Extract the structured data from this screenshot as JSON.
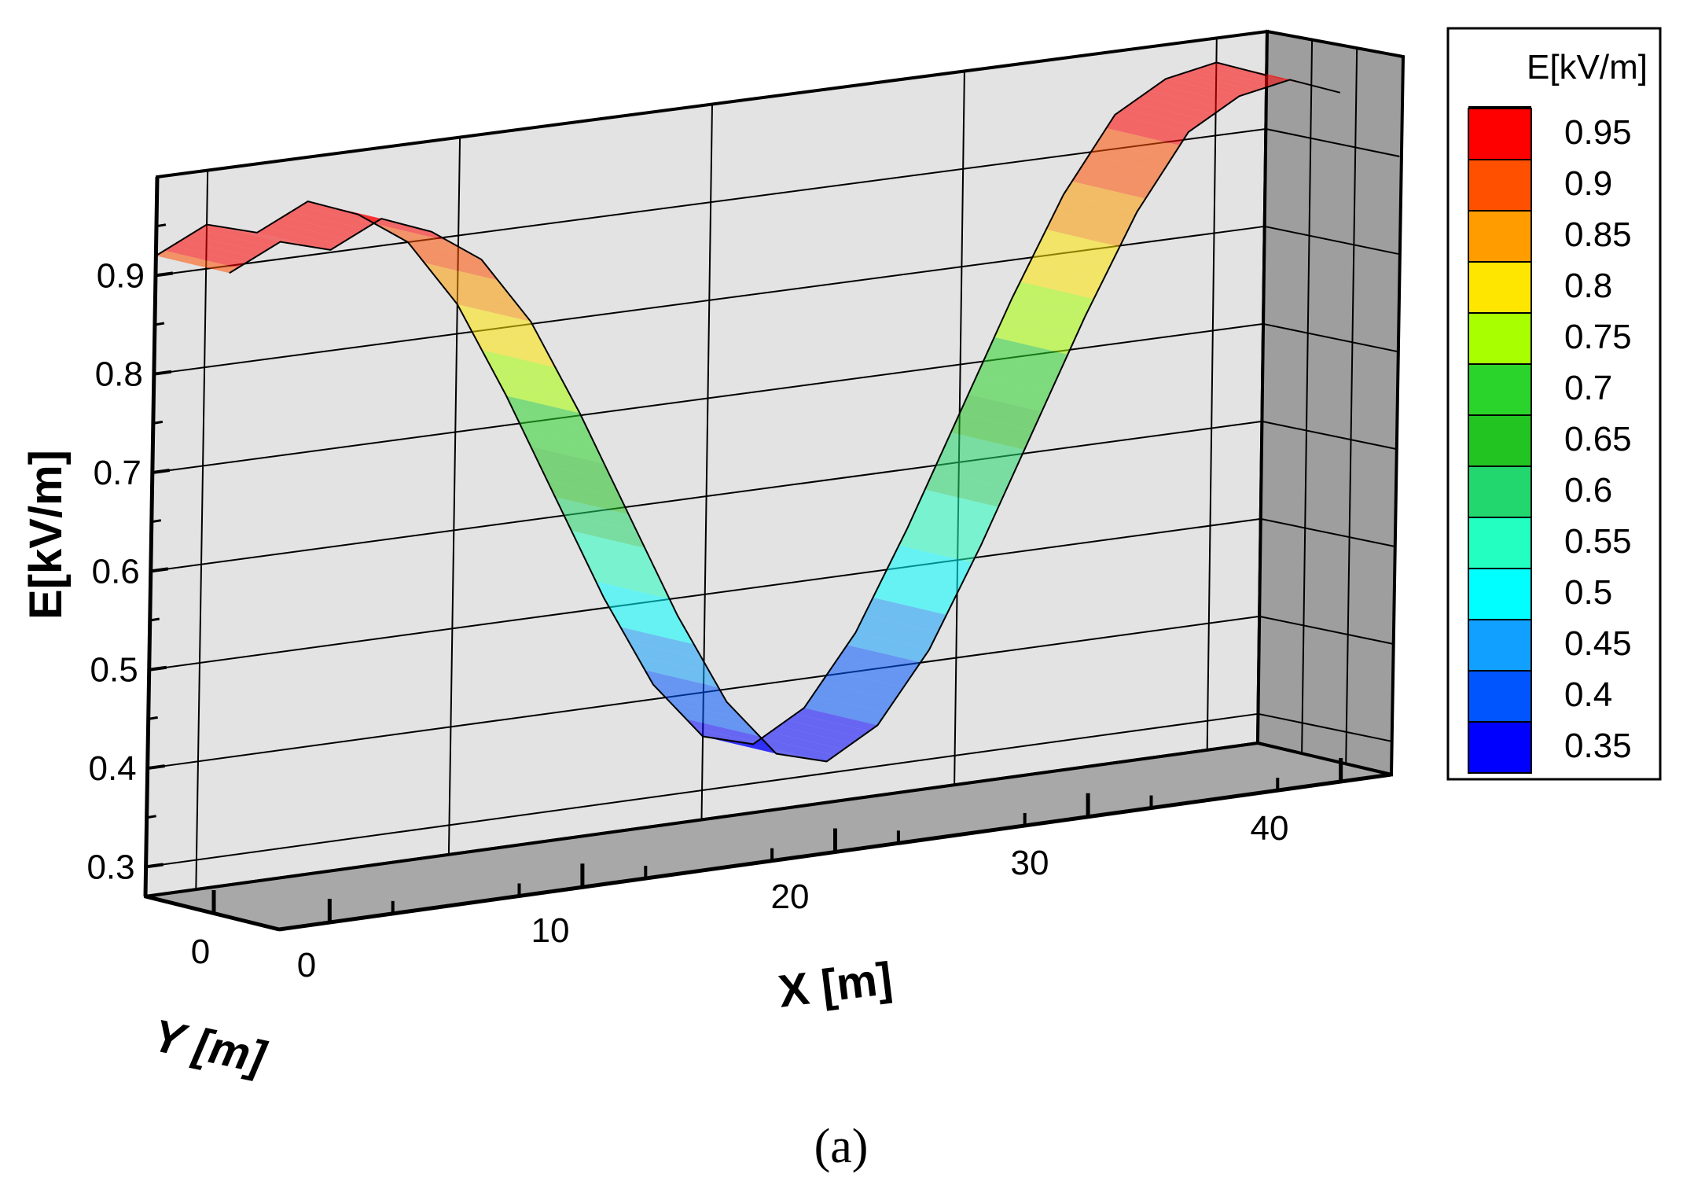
{
  "chart_data": {
    "type": "surface",
    "panel_label": "(a)",
    "zlabel": "E[kV/m]",
    "xlabel": "X [m]",
    "ylabel": "Y [m]",
    "zlim": [
      0.27,
      1.0
    ],
    "z_ticks": [
      "0.9",
      "0.8",
      "0.7",
      "0.6",
      "0.5",
      "0.4",
      "0.3"
    ],
    "x_ticks": [
      "0",
      "10",
      "20",
      "30",
      "40"
    ],
    "y_ticks": [
      "0"
    ],
    "legend": {
      "title": "E[kV/m]",
      "levels": [
        "0.95",
        "0.9",
        "0.85",
        "0.8",
        "0.75",
        "0.7",
        "0.65",
        "0.6",
        "0.55",
        "0.5",
        "0.45",
        "0.4",
        "0.35"
      ],
      "colors": [
        "#ff0000",
        "#ff5000",
        "#ff9c00",
        "#ffe600",
        "#a8ff00",
        "#2ad42a",
        "#22c422",
        "#22d86e",
        "#22ffc0",
        "#00ffff",
        "#11a0ff",
        "#0055ff",
        "#0000ff"
      ]
    },
    "surface": {
      "x": [
        0,
        2,
        4,
        6,
        8,
        10,
        12,
        14,
        16,
        18,
        20,
        22,
        24,
        26,
        28,
        30,
        32,
        34,
        36,
        38,
        40,
        42,
        44
      ],
      "E": [
        0.92,
        0.945,
        0.93,
        0.955,
        0.935,
        0.9,
        0.83,
        0.73,
        0.62,
        0.51,
        0.415,
        0.355,
        0.34,
        0.37,
        0.44,
        0.54,
        0.65,
        0.76,
        0.86,
        0.935,
        0.965,
        0.975,
        0.955
      ]
    }
  }
}
